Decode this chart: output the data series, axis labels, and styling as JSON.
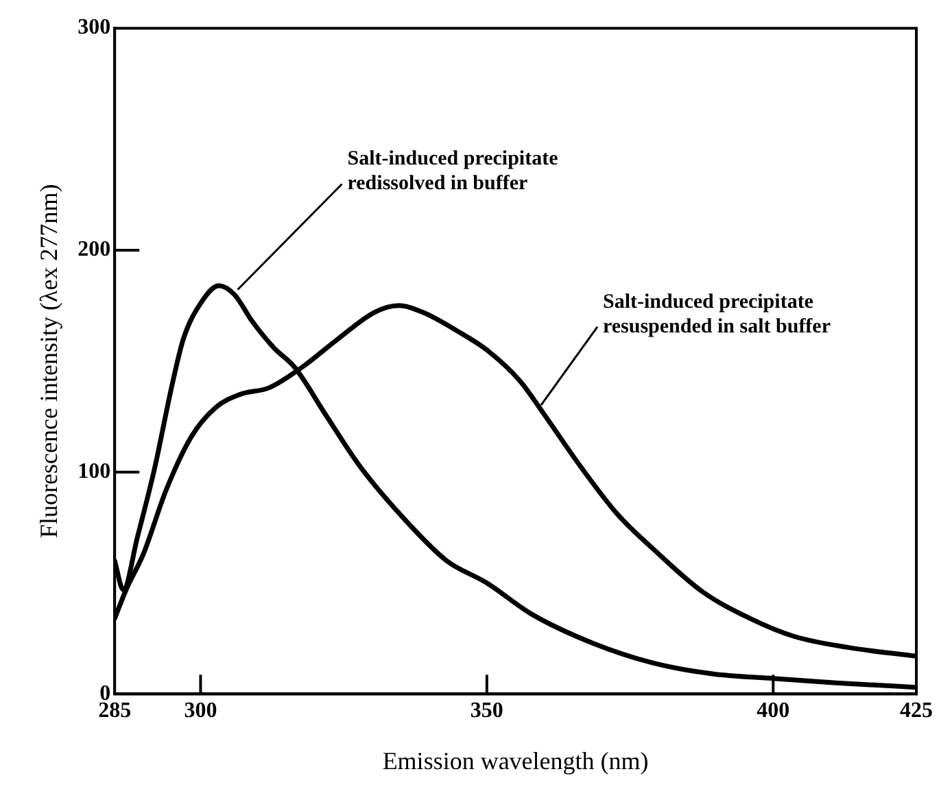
{
  "chart_data": {
    "type": "line",
    "xlabel": "Emission wavelength (nm)",
    "ylabel": "Fluorescence intensity (λex 277nm)",
    "xlim": [
      285,
      425
    ],
    "xticks": [
      285,
      300,
      350,
      400,
      425
    ],
    "ylim": [
      0,
      300
    ],
    "yticks": [
      0,
      100,
      200,
      300
    ],
    "grid": false,
    "legend": false,
    "marker": "none",
    "line_style": "solid",
    "series": [
      {
        "color": "#000000",
        "x": [
          285,
          286.5,
          289,
          292,
          295,
          297,
          300,
          303.2,
          305.9,
          309,
          312.8,
          316.5,
          321.8,
          328,
          336.6,
          343,
          350,
          357.8,
          368.4,
          379,
          389.6,
          400,
          411,
          425
        ],
        "values": [
          60,
          47,
          71,
          102,
          139,
          160,
          176,
          184,
          180,
          168,
          156,
          147,
          126,
          102,
          76,
          60,
          50,
          36,
          23,
          14,
          9,
          7,
          5,
          3
        ]
      },
      {
        "color": "#000000",
        "x": [
          285,
          287,
          290,
          294,
          298.4,
          302.6,
          306.9,
          312,
          317.6,
          324,
          330.4,
          334.6,
          338.8,
          345.2,
          350,
          355.8,
          360,
          366.5,
          372.8,
          379.2,
          387.7,
          396,
          403.6,
          413,
          425
        ],
        "values": [
          34,
          47,
          63,
          92,
          116,
          129,
          135,
          138,
          147,
          160,
          172,
          175,
          172,
          163,
          155,
          141,
          126,
          102,
          81,
          65,
          46,
          34,
          26,
          21,
          17
        ]
      }
    ],
    "annotations": [
      {
        "text": "Salt-induced precipitate\nredissolved in buffer",
        "x": 306,
        "y": 181
      },
      {
        "text": "Salt-induced precipitate\nresuspended in salt buffer",
        "x": 359,
        "y": 129
      }
    ]
  }
}
